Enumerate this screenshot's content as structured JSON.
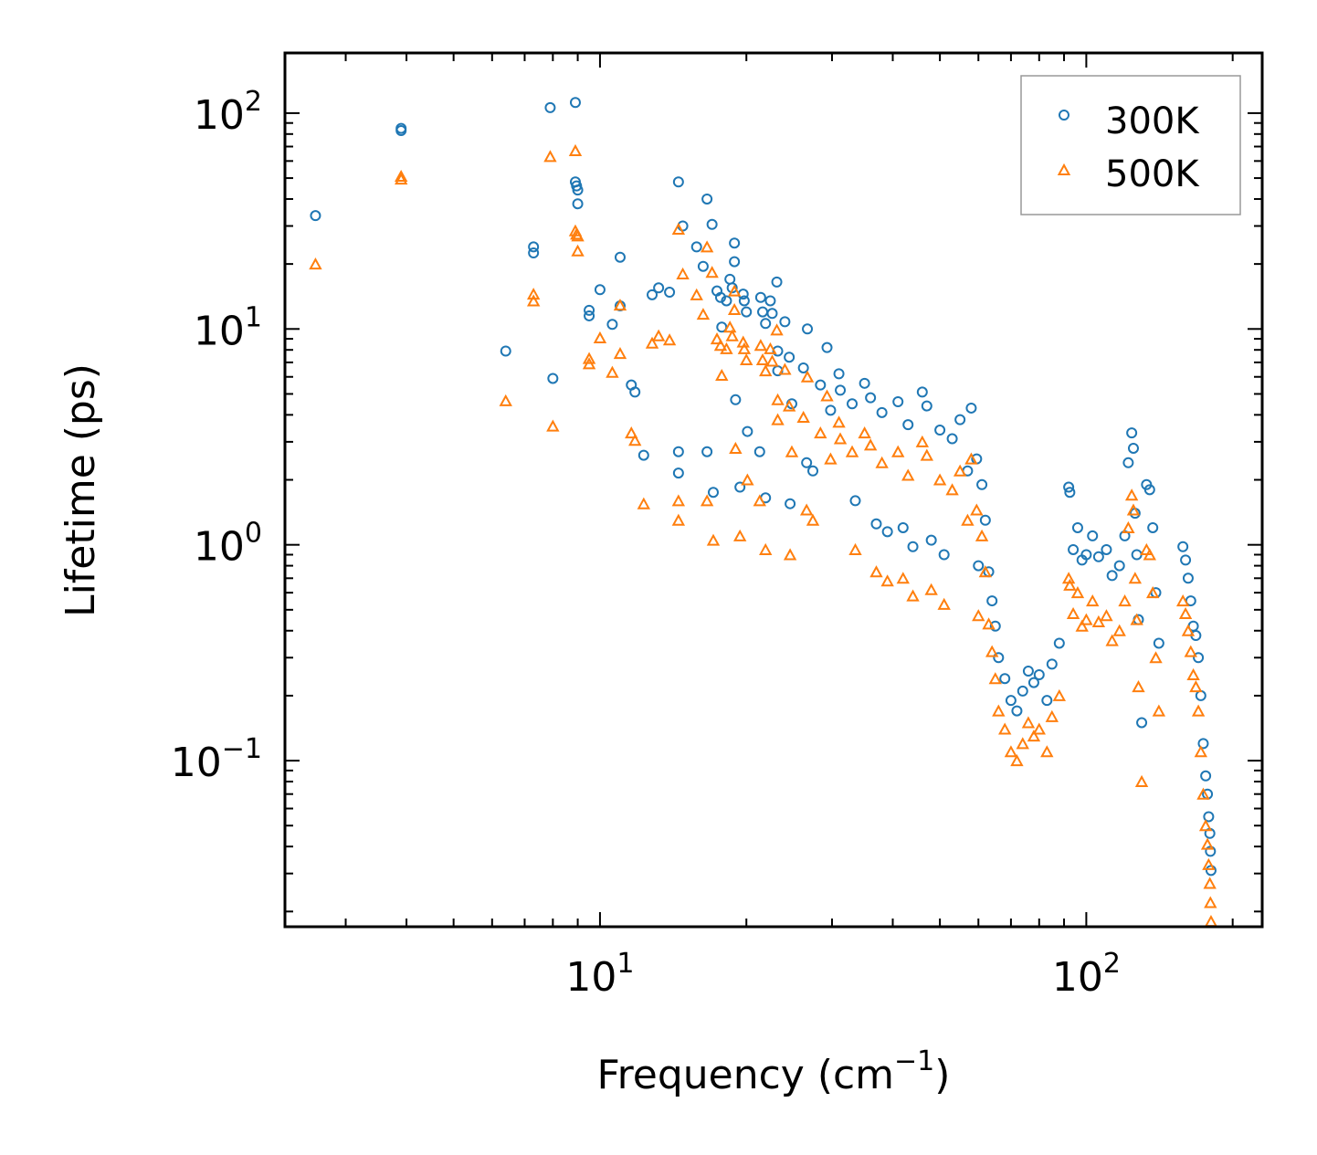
{
  "chart_data": {
    "type": "scatter",
    "title": "",
    "xlabel_text": "Frequency (cm",
    "xlabel_sup": "−1",
    "xlabel_close": ")",
    "ylabel": "Lifetime (ps)",
    "xscale": "log",
    "yscale": "log",
    "xlim": [
      2.25,
      230
    ],
    "ylim": [
      0.017,
      190
    ],
    "legend_position": "top-right",
    "x_ticks": [
      {
        "value": 10,
        "base": "10",
        "exp": "1"
      },
      {
        "value": 100,
        "base": "10",
        "exp": "2"
      }
    ],
    "y_ticks": [
      {
        "value": 0.1,
        "base": "10",
        "exp": "−1"
      },
      {
        "value": 1,
        "base": "10",
        "exp": "0"
      },
      {
        "value": 10,
        "base": "10",
        "exp": "1"
      },
      {
        "value": 100,
        "base": "10",
        "exp": "2"
      }
    ],
    "series": [
      {
        "name": "300K",
        "marker": "circle",
        "color": "#1f77b4",
        "points": [
          [
            2.6,
            33.5
          ],
          [
            3.9,
            85
          ],
          [
            3.9,
            83
          ],
          [
            6.4,
            7.9
          ],
          [
            7.3,
            24
          ],
          [
            7.3,
            22.5
          ],
          [
            7.9,
            106
          ],
          [
            8.0,
            5.9
          ],
          [
            8.9,
            112
          ],
          [
            8.9,
            48
          ],
          [
            8.95,
            46
          ],
          [
            9.0,
            44
          ],
          [
            9.0,
            38
          ],
          [
            9.5,
            12.2
          ],
          [
            9.5,
            11.5
          ],
          [
            10.0,
            15.2
          ],
          [
            10.6,
            10.5
          ],
          [
            11.0,
            21.5
          ],
          [
            11.0,
            12.8
          ],
          [
            11.6,
            5.5
          ],
          [
            11.8,
            5.1
          ],
          [
            12.3,
            2.6
          ],
          [
            12.8,
            14.4
          ],
          [
            13.2,
            15.5
          ],
          [
            13.9,
            14.8
          ],
          [
            14.5,
            48
          ],
          [
            14.5,
            2.7
          ],
          [
            14.5,
            2.15
          ],
          [
            14.8,
            30
          ],
          [
            15.8,
            24
          ],
          [
            16.3,
            19.5
          ],
          [
            16.6,
            40
          ],
          [
            16.6,
            2.7
          ],
          [
            17.0,
            30.5
          ],
          [
            17.1,
            1.75
          ],
          [
            17.4,
            15
          ],
          [
            17.7,
            14
          ],
          [
            17.8,
            10.2
          ],
          [
            18.2,
            13.5
          ],
          [
            18.5,
            17
          ],
          [
            18.7,
            15.5
          ],
          [
            18.9,
            25
          ],
          [
            18.9,
            20.5
          ],
          [
            19.0,
            4.7
          ],
          [
            19.4,
            1.85
          ],
          [
            19.7,
            14.5
          ],
          [
            19.8,
            13.5
          ],
          [
            20.0,
            12
          ],
          [
            20.1,
            3.35
          ],
          [
            21.4,
            14
          ],
          [
            21.6,
            12
          ],
          [
            21.9,
            10.6
          ],
          [
            21.3,
            2.7
          ],
          [
            21.9,
            1.65
          ],
          [
            22.4,
            13.5
          ],
          [
            22.6,
            11.8
          ],
          [
            23.1,
            16.5
          ],
          [
            23.2,
            7.9
          ],
          [
            23.2,
            6.4
          ],
          [
            24.0,
            10.8
          ],
          [
            24.5,
            7.4
          ],
          [
            24.8,
            4.5
          ],
          [
            24.6,
            1.55
          ],
          [
            26.2,
            6.6
          ],
          [
            26.7,
            10
          ],
          [
            26.6,
            2.4
          ],
          [
            27.4,
            2.2
          ],
          [
            28.4,
            5.5
          ],
          [
            29.3,
            8.2
          ],
          [
            29.8,
            4.2
          ],
          [
            31.0,
            6.2
          ],
          [
            31.2,
            5.2
          ],
          [
            33.0,
            4.5
          ],
          [
            33.5,
            1.6
          ],
          [
            35.0,
            5.6
          ],
          [
            36.0,
            4.8
          ],
          [
            37.0,
            1.25
          ],
          [
            38.0,
            4.1
          ],
          [
            39.0,
            1.15
          ],
          [
            41.0,
            4.6
          ],
          [
            42.0,
            1.2
          ],
          [
            43.0,
            3.6
          ],
          [
            44.0,
            0.98
          ],
          [
            46.0,
            5.1
          ],
          [
            47.0,
            4.4
          ],
          [
            48.0,
            1.05
          ],
          [
            50.0,
            3.4
          ],
          [
            51.0,
            0.9
          ],
          [
            53.0,
            3.1
          ],
          [
            55.0,
            3.8
          ],
          [
            57.0,
            2.2
          ],
          [
            58.0,
            4.3
          ],
          [
            59.5,
            2.5
          ],
          [
            60.0,
            0.8
          ],
          [
            61.0,
            1.9
          ],
          [
            62.0,
            1.3
          ],
          [
            63.0,
            0.75
          ],
          [
            64.0,
            0.55
          ],
          [
            65.0,
            0.42
          ],
          [
            66.0,
            0.3
          ],
          [
            68.0,
            0.24
          ],
          [
            70.0,
            0.19
          ],
          [
            72.0,
            0.17
          ],
          [
            74.0,
            0.21
          ],
          [
            76.0,
            0.26
          ],
          [
            78.0,
            0.23
          ],
          [
            80.0,
            0.25
          ],
          [
            83.0,
            0.19
          ],
          [
            85.0,
            0.28
          ],
          [
            88.0,
            0.35
          ],
          [
            92.0,
            1.85
          ],
          [
            92.5,
            1.75
          ],
          [
            94.0,
            0.95
          ],
          [
            96.0,
            1.2
          ],
          [
            98.0,
            0.85
          ],
          [
            100.0,
            0.9
          ],
          [
            103.0,
            1.1
          ],
          [
            106.0,
            0.88
          ],
          [
            110.0,
            0.95
          ],
          [
            113.0,
            0.72
          ],
          [
            117.0,
            0.8
          ],
          [
            120.0,
            1.1
          ],
          [
            122.0,
            2.4
          ],
          [
            124.0,
            3.3
          ],
          [
            125.0,
            2.8
          ],
          [
            126.0,
            1.4
          ],
          [
            127.0,
            0.9
          ],
          [
            128.0,
            0.45
          ],
          [
            130.0,
            0.15
          ],
          [
            133.0,
            1.9
          ],
          [
            135.0,
            1.8
          ],
          [
            137.0,
            1.2
          ],
          [
            139.0,
            0.6
          ],
          [
            141.0,
            0.35
          ],
          [
            158.0,
            0.98
          ],
          [
            160.0,
            0.85
          ],
          [
            162.0,
            0.7
          ],
          [
            164.0,
            0.55
          ],
          [
            166.0,
            0.42
          ],
          [
            168.0,
            0.38
          ],
          [
            170.0,
            0.3
          ],
          [
            172.0,
            0.2
          ],
          [
            174.0,
            0.12
          ],
          [
            176.0,
            0.085
          ],
          [
            177.5,
            0.07
          ],
          [
            178.5,
            0.055
          ],
          [
            179.5,
            0.046
          ],
          [
            180.0,
            0.038
          ],
          [
            180.5,
            0.031
          ]
        ]
      },
      {
        "name": "500K",
        "marker": "triangle",
        "color": "#ff7f0e",
        "points": [
          [
            2.6,
            20
          ],
          [
            3.9,
            51
          ],
          [
            3.9,
            49.5
          ],
          [
            6.4,
            4.65
          ],
          [
            7.3,
            14.5
          ],
          [
            7.3,
            13.5
          ],
          [
            7.9,
            63
          ],
          [
            8.0,
            3.55
          ],
          [
            8.9,
            67
          ],
          [
            8.9,
            28.5
          ],
          [
            8.95,
            27.5
          ],
          [
            9.0,
            27
          ],
          [
            9.0,
            23
          ],
          [
            9.5,
            7.3
          ],
          [
            9.5,
            6.9
          ],
          [
            10.0,
            9.1
          ],
          [
            10.6,
            6.3
          ],
          [
            11.0,
            12.9
          ],
          [
            11.0,
            7.7
          ],
          [
            11.6,
            3.3
          ],
          [
            11.8,
            3.05
          ],
          [
            12.3,
            1.55
          ],
          [
            12.8,
            8.6
          ],
          [
            13.2,
            9.3
          ],
          [
            13.9,
            8.9
          ],
          [
            14.5,
            29
          ],
          [
            14.5,
            1.6
          ],
          [
            14.5,
            1.3
          ],
          [
            14.8,
            18
          ],
          [
            15.8,
            14.4
          ],
          [
            16.3,
            11.7
          ],
          [
            16.6,
            24
          ],
          [
            16.6,
            1.6
          ],
          [
            17.0,
            18.3
          ],
          [
            17.1,
            1.05
          ],
          [
            17.4,
            9
          ],
          [
            17.7,
            8.4
          ],
          [
            17.8,
            6.1
          ],
          [
            18.2,
            8.1
          ],
          [
            18.5,
            10.2
          ],
          [
            18.7,
            9.3
          ],
          [
            18.9,
            15
          ],
          [
            18.9,
            12.3
          ],
          [
            19.0,
            2.8
          ],
          [
            19.4,
            1.1
          ],
          [
            19.7,
            8.7
          ],
          [
            19.8,
            8.1
          ],
          [
            20.0,
            7.2
          ],
          [
            20.1,
            2.0
          ],
          [
            21.4,
            8.4
          ],
          [
            21.6,
            7.2
          ],
          [
            21.9,
            6.4
          ],
          [
            21.3,
            1.6
          ],
          [
            21.9,
            0.95
          ],
          [
            22.4,
            8.1
          ],
          [
            22.6,
            7.1
          ],
          [
            23.1,
            9.9
          ],
          [
            23.2,
            4.7
          ],
          [
            23.2,
            3.8
          ],
          [
            24.0,
            6.5
          ],
          [
            24.5,
            4.4
          ],
          [
            24.8,
            2.7
          ],
          [
            24.6,
            0.9
          ],
          [
            26.2,
            3.9
          ],
          [
            26.7,
            6
          ],
          [
            26.6,
            1.45
          ],
          [
            27.4,
            1.3
          ],
          [
            28.4,
            3.3
          ],
          [
            29.3,
            4.9
          ],
          [
            29.8,
            2.5
          ],
          [
            31.0,
            3.7
          ],
          [
            31.2,
            3.1
          ],
          [
            33.0,
            2.7
          ],
          [
            33.5,
            0.95
          ],
          [
            35.0,
            3.3
          ],
          [
            36.0,
            2.9
          ],
          [
            37.0,
            0.75
          ],
          [
            38.0,
            2.4
          ],
          [
            39.0,
            0.68
          ],
          [
            41.0,
            2.7
          ],
          [
            42.0,
            0.7
          ],
          [
            43.0,
            2.1
          ],
          [
            44.0,
            0.58
          ],
          [
            46.0,
            3.0
          ],
          [
            47.0,
            2.6
          ],
          [
            48.0,
            0.62
          ],
          [
            50.0,
            2.0
          ],
          [
            51.0,
            0.53
          ],
          [
            53.0,
            1.8
          ],
          [
            55.0,
            2.2
          ],
          [
            57.0,
            1.3
          ],
          [
            58.0,
            2.5
          ],
          [
            59.5,
            1.45
          ],
          [
            60.0,
            0.47
          ],
          [
            61.0,
            1.1
          ],
          [
            62.0,
            0.75
          ],
          [
            63.0,
            0.43
          ],
          [
            64.0,
            0.32
          ],
          [
            65.0,
            0.24
          ],
          [
            66.0,
            0.17
          ],
          [
            68.0,
            0.14
          ],
          [
            70.0,
            0.11
          ],
          [
            72.0,
            0.1
          ],
          [
            74.0,
            0.12
          ],
          [
            76.0,
            0.15
          ],
          [
            78.0,
            0.13
          ],
          [
            80.0,
            0.14
          ],
          [
            83.0,
            0.11
          ],
          [
            85.0,
            0.16
          ],
          [
            88.0,
            0.2
          ],
          [
            92.0,
            0.7
          ],
          [
            92.5,
            0.65
          ],
          [
            94.0,
            0.48
          ],
          [
            96.0,
            0.6
          ],
          [
            98.0,
            0.42
          ],
          [
            100.0,
            0.45
          ],
          [
            103.0,
            0.55
          ],
          [
            106.0,
            0.44
          ],
          [
            110.0,
            0.47
          ],
          [
            113.0,
            0.36
          ],
          [
            117.0,
            0.4
          ],
          [
            120.0,
            0.55
          ],
          [
            122.0,
            1.2
          ],
          [
            124.0,
            1.7
          ],
          [
            125.0,
            1.45
          ],
          [
            126.0,
            0.7
          ],
          [
            127.0,
            0.45
          ],
          [
            128.0,
            0.22
          ],
          [
            130.0,
            0.08
          ],
          [
            133.0,
            0.95
          ],
          [
            135.0,
            0.9
          ],
          [
            137.0,
            0.6
          ],
          [
            139.0,
            0.3
          ],
          [
            141.0,
            0.17
          ],
          [
            158.0,
            0.55
          ],
          [
            160.0,
            0.48
          ],
          [
            162.0,
            0.4
          ],
          [
            164.0,
            0.32
          ],
          [
            166.0,
            0.25
          ],
          [
            168.0,
            0.22
          ],
          [
            170.0,
            0.17
          ],
          [
            172.0,
            0.11
          ],
          [
            174.0,
            0.07
          ],
          [
            176.0,
            0.05
          ],
          [
            177.5,
            0.041
          ],
          [
            178.5,
            0.033
          ],
          [
            179.5,
            0.027
          ],
          [
            180.0,
            0.022
          ],
          [
            180.5,
            0.018
          ]
        ]
      }
    ]
  }
}
